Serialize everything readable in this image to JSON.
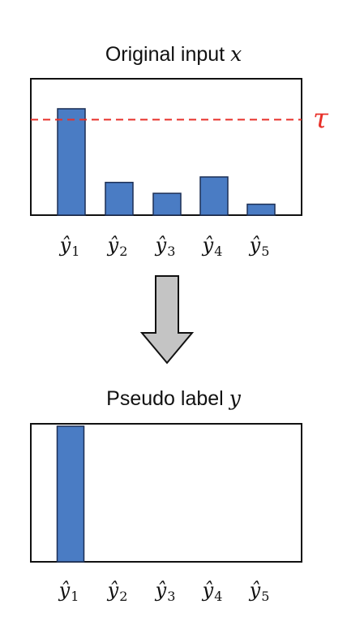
{
  "top_panel": {
    "title_text": "Original input ",
    "title_var": "x",
    "threshold_label": "τ"
  },
  "bottom_panel": {
    "title_text": "Pseudo label ",
    "title_var": "y"
  },
  "label_symbol": "ŷ",
  "label_subscripts": [
    "1",
    "2",
    "3",
    "4",
    "5"
  ],
  "colors": {
    "bar": "#4a7cc4",
    "bar_edge": "#1c2f55",
    "threshold": "#e8312a",
    "arrow_fill": "#c4c4c4",
    "frame": "#111111"
  },
  "chart_data": [
    {
      "type": "bar",
      "categories": [
        "ŷ1",
        "ŷ2",
        "ŷ3",
        "ŷ4",
        "ŷ5"
      ],
      "values": [
        0.78,
        0.24,
        0.16,
        0.28,
        0.08
      ],
      "ylim": [
        0,
        1
      ],
      "threshold": 0.7
    },
    {
      "type": "bar",
      "categories": [
        "ŷ1",
        "ŷ2",
        "ŷ3",
        "ŷ4",
        "ŷ5"
      ],
      "values": [
        1.0,
        0,
        0,
        0,
        0
      ],
      "ylim": [
        0,
        1
      ]
    }
  ]
}
